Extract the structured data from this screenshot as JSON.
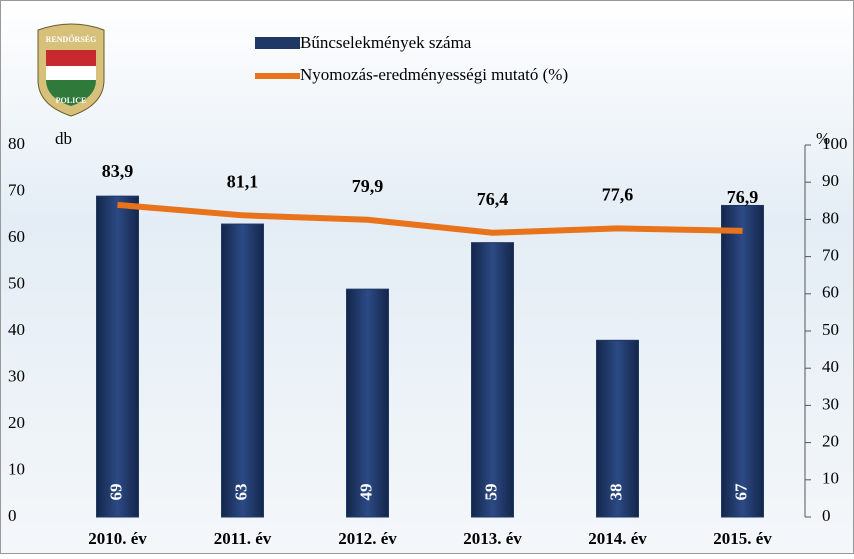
{
  "chart_data": {
    "type": "bar-line",
    "logo": [
      "RENDŐRSÉG",
      "POLICE"
    ],
    "categories": [
      "2010. év",
      "2011. év",
      "2012. év",
      "2013. év",
      "2014. év",
      "2015. év"
    ],
    "series": [
      {
        "name": "Bűncselekmények száma",
        "color": "#1f3864",
        "values": [
          69,
          63,
          49,
          59,
          38,
          67
        ]
      },
      {
        "name": "Nyomozás-eredményességi mutató (%)",
        "color": "#e8731a",
        "axis": "y2",
        "values": [
          83.9,
          81.1,
          79.9,
          76.4,
          77.6,
          76.9
        ],
        "value_labels": [
          "83,9",
          "81,1",
          "79,9",
          "76,4",
          "77,6",
          "76,9"
        ]
      }
    ],
    "ylabel": "db",
    "y2label": "%",
    "ylim": [
      0,
      80
    ],
    "yticks": [
      0,
      10,
      20,
      30,
      40,
      50,
      60,
      70,
      80
    ],
    "y2lim": [
      0,
      100
    ],
    "y2ticks": [
      0,
      10,
      20,
      30,
      40,
      50,
      60,
      70,
      80,
      90,
      100
    ]
  }
}
